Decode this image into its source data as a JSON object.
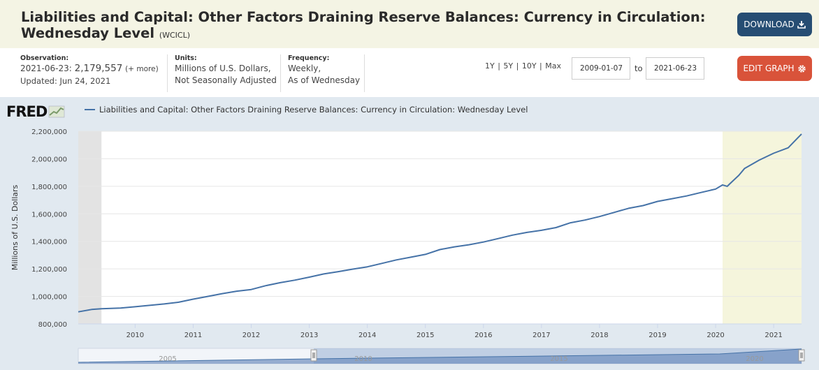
{
  "header": {
    "title": "Liabilities and Capital: Other Factors Draining Reserve Balances: Currency in Circulation: Wednesday Level",
    "code": "(WCICL)",
    "download_label": "DOWNLOAD",
    "edit_label": "EDIT GRAPH"
  },
  "meta": {
    "observation_label": "Observation:",
    "observation_date": "2021-06-23:",
    "observation_value": "2,179,557",
    "more": "(+ more)",
    "updated": "Updated: Jun 24, 2021",
    "units_label": "Units:",
    "units_line1": "Millions of U.S. Dollars,",
    "units_line2": "Not Seasonally Adjusted",
    "frequency_label": "Frequency:",
    "frequency_line1": "Weekly,",
    "frequency_line2": "As of Wednesday"
  },
  "range": {
    "buttons": [
      "1Y",
      "5Y",
      "10Y",
      "Max"
    ],
    "start": "2009-01-07",
    "to": "to",
    "end": "2021-06-23"
  },
  "colors": {
    "line": "#4572a7",
    "recession": "#f5f5dc",
    "download_btn": "#264d73",
    "edit_btn": "#d9533a"
  },
  "chart_data": {
    "type": "line",
    "legend": "Liabilities and Capital: Other Factors Draining Reserve Balances: Currency in Circulation: Wednesday Level",
    "ylabel": "Millions of U.S. Dollars",
    "xlim": [
      2009.02,
      2021.48
    ],
    "ylim": [
      800000,
      2200000
    ],
    "y_ticks": [
      800000,
      1000000,
      1200000,
      1400000,
      1600000,
      1800000,
      2000000,
      2200000
    ],
    "y_tick_labels": [
      "800,000",
      "1,000,000",
      "1,200,000",
      "1,400,000",
      "1,600,000",
      "1,800,000",
      "2,000,000",
      "2,200,000"
    ],
    "x_ticks": [
      2010,
      2011,
      2012,
      2013,
      2014,
      2015,
      2016,
      2017,
      2018,
      2019,
      2020,
      2021
    ],
    "x_tick_labels": [
      "2010",
      "2011",
      "2012",
      "2013",
      "2014",
      "2015",
      "2016",
      "2017",
      "2018",
      "2019",
      "2020",
      "2021"
    ],
    "shaded_periods": [
      {
        "start": 2009.02,
        "end": 2009.42,
        "color": "#e3e3e3"
      },
      {
        "start": 2020.12,
        "end": 2021.48,
        "color": "#f5f5dc"
      }
    ],
    "series": [
      {
        "name": "WCICL",
        "x": [
          2009.02,
          2009.25,
          2009.42,
          2009.75,
          2010.0,
          2010.25,
          2010.5,
          2010.75,
          2011.0,
          2011.25,
          2011.5,
          2011.75,
          2012.0,
          2012.25,
          2012.5,
          2012.75,
          2013.0,
          2013.25,
          2013.5,
          2013.75,
          2014.0,
          2014.25,
          2014.5,
          2014.75,
          2015.0,
          2015.25,
          2015.5,
          2015.75,
          2016.0,
          2016.25,
          2016.5,
          2016.75,
          2017.0,
          2017.25,
          2017.5,
          2017.75,
          2018.0,
          2018.25,
          2018.5,
          2018.75,
          2019.0,
          2019.25,
          2019.5,
          2019.75,
          2020.0,
          2020.12,
          2020.2,
          2020.25,
          2020.4,
          2020.5,
          2020.75,
          2021.0,
          2021.25,
          2021.48
        ],
        "y": [
          888000,
          905000,
          910000,
          915000,
          925000,
          935000,
          945000,
          958000,
          980000,
          1000000,
          1020000,
          1038000,
          1050000,
          1078000,
          1100000,
          1118000,
          1140000,
          1163000,
          1180000,
          1198000,
          1215000,
          1240000,
          1265000,
          1285000,
          1305000,
          1340000,
          1360000,
          1375000,
          1395000,
          1420000,
          1445000,
          1465000,
          1480000,
          1500000,
          1535000,
          1555000,
          1580000,
          1610000,
          1640000,
          1660000,
          1690000,
          1710000,
          1730000,
          1755000,
          1780000,
          1810000,
          1800000,
          1820000,
          1880000,
          1930000,
          1990000,
          2040000,
          2080000,
          2179557
        ]
      }
    ],
    "navigator_tick_labels": [
      "2005",
      "2010",
      "2015",
      "2020"
    ]
  }
}
